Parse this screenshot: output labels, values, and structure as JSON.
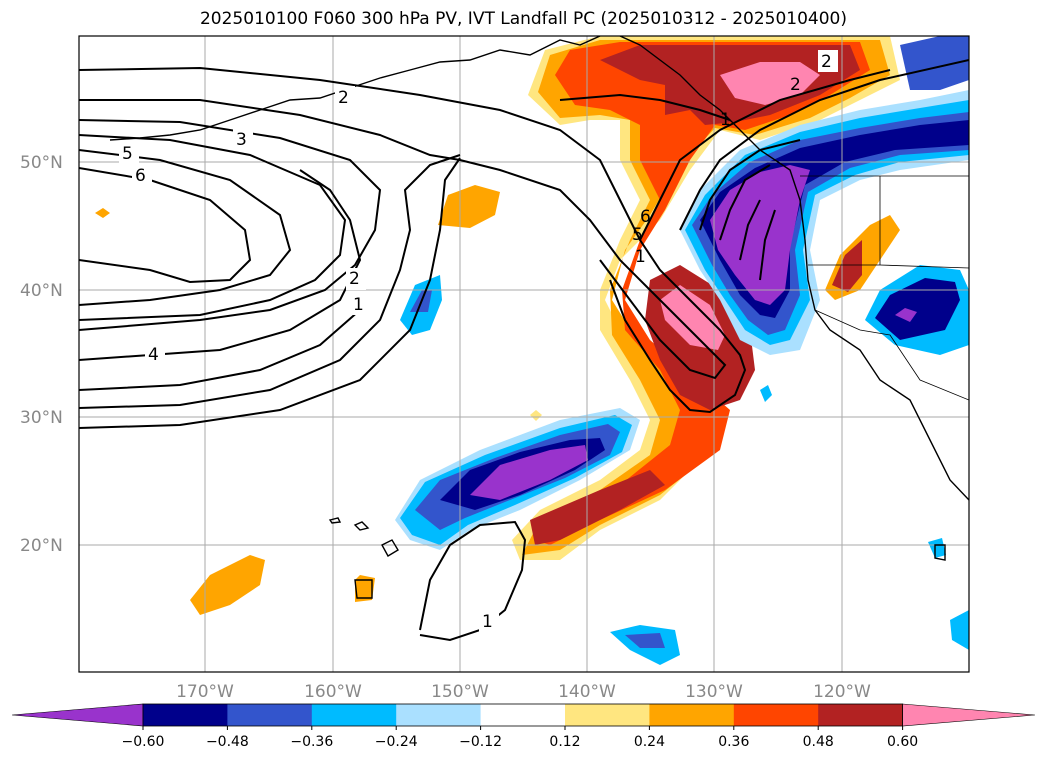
{
  "title": "2025010100 F060 300 hPa PV, IVT Landfall PC (2025010312 - 2025010400)",
  "lat_labels": [
    "50°N",
    "40°N",
    "30°N",
    "20°N"
  ],
  "lon_labels": [
    "170°W",
    "160°W",
    "150°W",
    "140°W",
    "130°W",
    "120°W"
  ],
  "colorbar": {
    "levels": [
      "−0.60",
      "−0.48",
      "−0.36",
      "−0.24",
      "−0.12",
      "0.12",
      "0.24",
      "0.36",
      "0.48",
      "0.60"
    ],
    "colors": [
      "#9933cc",
      "#00008b",
      "#3355cc",
      "#00bbff",
      "#aae0ff",
      "#ffffff",
      "#ffe680",
      "#ffa500",
      "#ff4500",
      "#b22222",
      "#ff85b0"
    ]
  },
  "contour_labels": [
    "2",
    "3",
    "5",
    "6",
    "4",
    "2",
    "1",
    "1",
    "2",
    "6",
    "5",
    "1",
    "2",
    "1"
  ],
  "colors": {
    "purple": "#9933cc",
    "navy": "#00008b",
    "blue": "#3355cc",
    "cyan": "#00bbff",
    "lightblue": "#aae0ff",
    "yellow": "#ffe680",
    "orange": "#ffa500",
    "redorange": "#ff4500",
    "darkred": "#b22222",
    "pink": "#ff85b0"
  }
}
